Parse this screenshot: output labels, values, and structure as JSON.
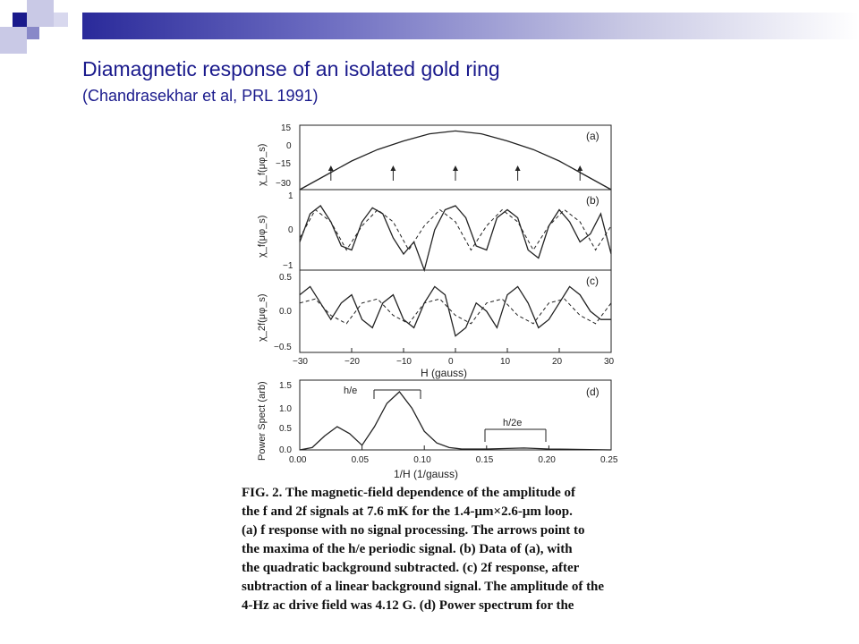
{
  "slide": {
    "title": "Diamagnetic response of an isolated gold ring",
    "subtitle": "(Chandrasekhar et al, PRL 1991)"
  },
  "figure": {
    "panels": [
      {
        "label": "(a)",
        "ylabel": "χ_f(μφ_s)",
        "yticks": [
          "15",
          "0",
          "−15",
          "−30"
        ]
      },
      {
        "label": "(b)",
        "ylabel": "χ_f(μφ_s)",
        "yticks": [
          "1",
          "0",
          "−1"
        ]
      },
      {
        "label": "(c)",
        "ylabel": "χ_2f(μφ_s)",
        "yticks": [
          "0.5",
          "0.0",
          "−0.5"
        ]
      },
      {
        "label": "(d)",
        "ylabel": "Power Spect (arb)",
        "yticks": [
          "1.5",
          "1.0",
          "0.5",
          "0.0"
        ]
      }
    ],
    "h_xticks": [
      "−30",
      "−20",
      "−10",
      "0",
      "10",
      "20",
      "30"
    ],
    "h_xlabel": "H   (gauss)",
    "inv_xticks": [
      "0.00",
      "0.05",
      "0.10",
      "0.15",
      "0.20",
      "0.25"
    ],
    "inv_xlabel": "1/H  (1/gauss)",
    "annot_he": "h/e",
    "annot_h2e": "h/2e"
  },
  "caption": {
    "lines": [
      "FIG. 2.  The magnetic-field dependence of the amplitude of",
      "the f and 2f signals at 7.6 mK for the 1.4-μm×2.6-μm loop.",
      "(a) f response with no signal processing.  The arrows point to",
      "the maxima of the h/e periodic signal.  (b) Data of (a), with",
      "the quadratic background subtracted.  (c) 2f response, after",
      "subtraction of a linear background signal.  The amplitude of the",
      "4-Hz ac drive field was 4.12 G.  (d) Power spectrum for the"
    ]
  },
  "chart_data": [
    {
      "type": "line",
      "title": "(a)",
      "xlabel": "H (gauss)",
      "ylabel": "χf(μφs)",
      "xlim": [
        -30,
        30
      ],
      "ylim": [
        -30,
        15
      ],
      "x": [
        -30,
        -25,
        -20,
        -15,
        -10,
        -5,
        0,
        5,
        10,
        15,
        20,
        25,
        30
      ],
      "values": [
        -30,
        -20,
        -10,
        -2,
        4,
        9,
        11,
        9,
        4,
        -2,
        -10,
        -20,
        -30
      ],
      "arrows_at": [
        -24,
        -12,
        0,
        12,
        24
      ]
    },
    {
      "type": "line",
      "title": "(b)",
      "xlabel": "H (gauss)",
      "ylabel": "χf(μφs)",
      "xlim": [
        -30,
        30
      ],
      "ylim": [
        -1,
        1
      ],
      "series": [
        {
          "x": [
            -30,
            -28,
            -26,
            -24,
            -22,
            -20,
            -18,
            -16,
            -14,
            -12,
            -10,
            -8,
            -6,
            -4,
            -2,
            0,
            2,
            4,
            6,
            8,
            10,
            12,
            14,
            16,
            18,
            20,
            22,
            24,
            26,
            28,
            30
          ],
          "values": [
            -0.3,
            0.4,
            0.6,
            0.2,
            -0.4,
            -0.5,
            0.2,
            0.55,
            0.4,
            -0.2,
            -0.6,
            -0.3,
            -1.0,
            0.0,
            0.5,
            0.6,
            0.3,
            -0.4,
            -0.5,
            0.3,
            0.5,
            0.3,
            -0.5,
            -0.7,
            0.1,
            0.5,
            0.2,
            -0.3,
            -0.1,
            0.4,
            -0.6
          ]
        },
        {
          "x": [
            -30,
            -27,
            -24,
            -21,
            -18,
            -15,
            -12,
            -9,
            -6,
            -3,
            0,
            3,
            6,
            9,
            12,
            15,
            18,
            21,
            24,
            27,
            30
          ],
          "values": [
            -0.2,
            0.5,
            0.2,
            -0.5,
            0.1,
            0.5,
            0.2,
            -0.5,
            0.1,
            0.5,
            0.2,
            -0.5,
            0.1,
            0.5,
            0.2,
            -0.5,
            0.1,
            0.5,
            0.2,
            -0.5,
            0.1
          ]
        }
      ]
    },
    {
      "type": "line",
      "title": "(c)",
      "xlabel": "H (gauss)",
      "ylabel": "χ2f(μφs)",
      "xlim": [
        -30,
        30
      ],
      "ylim": [
        -0.5,
        0.5
      ],
      "series": [
        {
          "x": [
            -30,
            -28,
            -26,
            -24,
            -22,
            -20,
            -18,
            -16,
            -14,
            -12,
            -10,
            -8,
            -6,
            -4,
            -2,
            0,
            2,
            4,
            6,
            8,
            10,
            12,
            14,
            16,
            18,
            20,
            22,
            24,
            26,
            28,
            30
          ],
          "values": [
            0.2,
            0.3,
            0.1,
            -0.1,
            0.1,
            0.2,
            -0.1,
            -0.2,
            0.1,
            0.2,
            -0.1,
            -0.2,
            0.1,
            0.3,
            0.2,
            -0.3,
            -0.2,
            0.1,
            0.0,
            -0.2,
            0.2,
            0.3,
            0.1,
            -0.2,
            -0.1,
            0.1,
            0.3,
            0.2,
            0.0,
            -0.1,
            -0.1
          ]
        },
        {
          "x": [
            -30,
            -27,
            -24,
            -21,
            -18,
            -15,
            -12,
            -9,
            -6,
            -3,
            0,
            3,
            6,
            9,
            12,
            15,
            18,
            21,
            24,
            27,
            30
          ],
          "values": [
            0.1,
            0.15,
            -0.05,
            -0.15,
            0.1,
            0.15,
            -0.05,
            -0.15,
            0.1,
            0.15,
            -0.05,
            -0.15,
            0.1,
            0.15,
            -0.05,
            -0.15,
            0.1,
            0.15,
            -0.05,
            -0.15,
            0.1
          ]
        }
      ]
    },
    {
      "type": "line",
      "title": "(d)",
      "xlabel": "1/H (1/gauss)",
      "ylabel": "Power Spect (arb)",
      "xlim": [
        0,
        0.25
      ],
      "ylim": [
        0,
        1.5
      ],
      "x": [
        0.0,
        0.01,
        0.02,
        0.03,
        0.04,
        0.05,
        0.06,
        0.07,
        0.08,
        0.09,
        0.1,
        0.11,
        0.12,
        0.13,
        0.15,
        0.18,
        0.2,
        0.25
      ],
      "values": [
        0.0,
        0.05,
        0.3,
        0.5,
        0.35,
        0.1,
        0.5,
        1.0,
        1.25,
        0.9,
        0.4,
        0.15,
        0.05,
        0.02,
        0.02,
        0.04,
        0.02,
        0.0
      ]
    }
  ]
}
